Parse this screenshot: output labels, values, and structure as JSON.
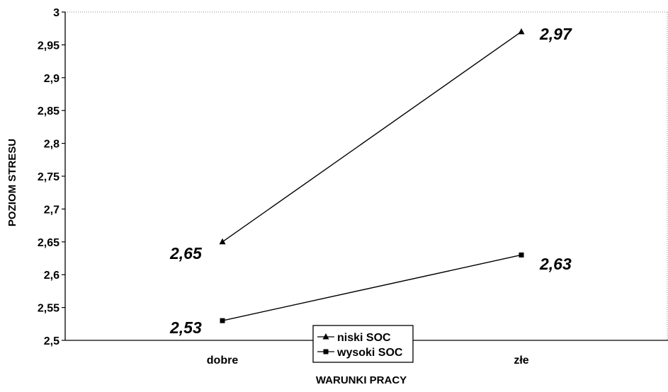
{
  "chart_data": {
    "type": "line",
    "title": "",
    "xlabel": "WARUNKI PRACY",
    "ylabel": "POZIOM STRESU",
    "categories": [
      "dobre",
      "złe"
    ],
    "ylim": [
      2.5,
      3
    ],
    "y_ticks": [
      2.5,
      2.55,
      2.6,
      2.65,
      2.7,
      2.75,
      2.8,
      2.85,
      2.9,
      2.95,
      3
    ],
    "y_tick_labels": [
      "2,5",
      "2,55",
      "2,6",
      "2,65",
      "2,7",
      "2,75",
      "2,8",
      "2,85",
      "2,9",
      "2,95",
      "3"
    ],
    "grid": false,
    "legend_position": "bottom-center",
    "series": [
      {
        "name": "niski SOC",
        "marker": "triangle",
        "color": "#000000",
        "values": [
          2.65,
          2.97
        ],
        "data_labels": [
          "2,65",
          "2,97"
        ]
      },
      {
        "name": "wysoki SOC",
        "marker": "square",
        "color": "#000000",
        "values": [
          2.53,
          2.63
        ],
        "data_labels": [
          "2,53",
          "2,63"
        ]
      }
    ]
  }
}
